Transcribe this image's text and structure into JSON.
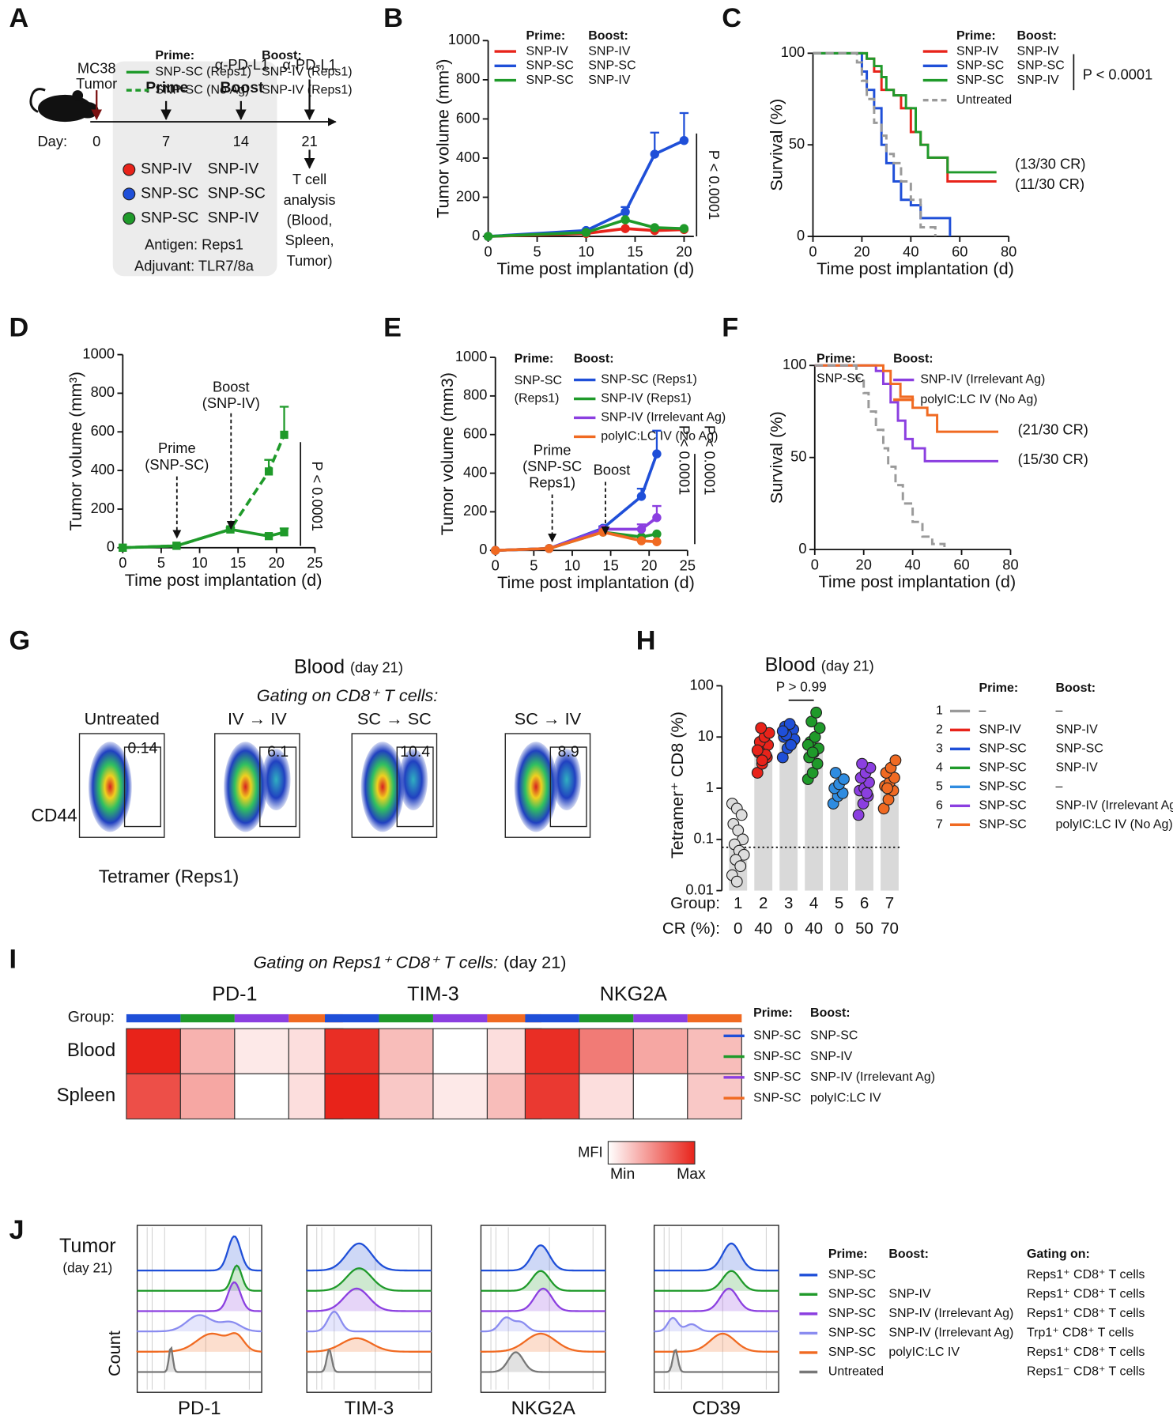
{
  "panel_labels": [
    "A",
    "B",
    "C",
    "D",
    "E",
    "F",
    "G",
    "H",
    "I",
    "J"
  ],
  "panel_a": {
    "mouse_label": [
      "MC38",
      "Tumor"
    ],
    "steps": [
      "Prime",
      "Boost"
    ],
    "treatments": [
      "α-PD-L1",
      "α-PD-L1"
    ],
    "day_label": "Day:",
    "days": [
      0,
      7,
      14,
      21
    ],
    "analysis": [
      "T cell",
      "analysis",
      "(Blood,",
      "Spleen,",
      "Tumor)"
    ],
    "groups": [
      {
        "color": "#e8231a",
        "prime": "SNP-IV",
        "boost": "SNP-IV"
      },
      {
        "color": "#1f4fd8",
        "prime": "SNP-SC",
        "boost": "SNP-SC"
      },
      {
        "color": "#1f9a2a",
        "prime": "SNP-SC",
        "boost": "SNP-IV"
      }
    ],
    "antigen": "Antigen: Reps1",
    "adjuvant": "Adjuvant: TLR7/8a"
  },
  "panel_g": {
    "title": "Blood",
    "title_note": "(day 21)",
    "subtitle": "Gating on CD8⁺ T cells:",
    "ylabel": "CD44",
    "xlabel": "Tetramer (Reps1)",
    "plots": [
      {
        "label": "Untreated",
        "color": "#8a8a8a",
        "gate": 0.14
      },
      {
        "label": "IV → IV",
        "color": "#e8231a",
        "gate": 6.1
      },
      {
        "label": "SC → SC",
        "color": "#1f4fd8",
        "gate": 10.4
      },
      {
        "label": "SC → IV",
        "color": "#1f9a2a",
        "gate": 8.9
      }
    ]
  },
  "panel_j": {
    "row_label": [
      "Tumor",
      "(day 21)"
    ],
    "ylabel": "Count",
    "markers": [
      "PD-1",
      "TIM-3",
      "NKG2A",
      "CD39"
    ],
    "headers": [
      "Prime:",
      "Boost:",
      "Gating on:"
    ],
    "rows": [
      {
        "color": "#1f4fd8",
        "prime": "SNP-SC",
        "boost": null,
        "gating": "Reps1⁺ CD8⁺ T cells"
      },
      {
        "color": "#1f9a2a",
        "prime": "SNP-SC",
        "boost": "SNP-IV",
        "gating": "Reps1⁺ CD8⁺ T cells"
      },
      {
        "color": "#8b3fe0",
        "prime": "SNP-SC",
        "boost": "SNP-IV (Irrelevant Ag)",
        "gating": "Reps1⁺ CD8⁺ T cells"
      },
      {
        "color": "#8a8cf0",
        "prime": "SNP-SC",
        "boost": "SNP-IV (Irrelevant Ag)",
        "gating": "Trp1⁺ CD8⁺ T cells"
      },
      {
        "color": "#f06a22",
        "prime": "SNP-SC",
        "boost": "polyIC:LC IV",
        "gating": "Reps1⁺ CD8⁺ T cells"
      },
      {
        "color": "#777777",
        "prime": "Untreated",
        "boost": null,
        "gating": "Reps1⁻ CD8⁺ T cells"
      }
    ]
  },
  "chart_data": [
    {
      "type": "line",
      "marker": "circle",
      "x": [
        0,
        10,
        14,
        17,
        20
      ],
      "xlim": [
        0,
        21
      ],
      "xticks": [
        0,
        5,
        10,
        15,
        20
      ],
      "ylim": [
        0,
        1000
      ],
      "yticks": [
        0,
        200,
        400,
        600,
        800,
        1000
      ],
      "xlabel": "Time post implantation (d)",
      "ylabel": "Tumor volume (mm³)",
      "legend_headers": [
        "Prime:",
        "Boost:"
      ],
      "series": [
        {
          "name": "SNP-IV",
          "boost": "SNP-IV",
          "color": "#e8231a",
          "values": [
            0,
            15,
            40,
            30,
            35
          ]
        },
        {
          "name": "SNP-SC",
          "boost": "SNP-SC",
          "color": "#1f4fd8",
          "values": [
            0,
            30,
            125,
            420,
            490
          ],
          "errors": [
            0,
            5,
            25,
            110,
            140
          ]
        },
        {
          "name": "SNP-SC",
          "boost": "SNP-IV",
          "color": "#1f9a2a",
          "values": [
            0,
            20,
            85,
            45,
            40
          ]
        }
      ],
      "annotations": [
        {
          "text": "P < 0.0001",
          "color": "#111111"
        }
      ]
    },
    {
      "type": "line",
      "step": true,
      "xlim": [
        0,
        80
      ],
      "xticks": [
        0,
        20,
        40,
        60,
        80
      ],
      "ylim": [
        0,
        100
      ],
      "yticks": [
        0,
        50,
        100
      ],
      "xlabel": "Time post implantation (d)",
      "ylabel": "Survival (%)",
      "legend_headers": [
        "Prime:",
        "Boost:"
      ],
      "series": [
        {
          "name": "SNP-IV",
          "boost": "SNP-IV",
          "color": "#e8231a",
          "x": [
            0,
            22,
            25,
            28,
            33,
            36,
            40,
            44,
            47,
            55,
            75
          ],
          "values": [
            100,
            97,
            90,
            80,
            77,
            70,
            57,
            50,
            43,
            30,
            30
          ]
        },
        {
          "name": "SNP-SC",
          "boost": "SNP-SC",
          "color": "#1f4fd8",
          "x": [
            0,
            20,
            22,
            25,
            28,
            30,
            33,
            36,
            40,
            44,
            50,
            56
          ],
          "values": [
            100,
            90,
            80,
            70,
            50,
            40,
            30,
            20,
            17,
            10,
            10,
            0
          ]
        },
        {
          "name": "SNP-SC",
          "boost": "SNP-IV",
          "color": "#1f9a2a",
          "x": [
            0,
            22,
            25,
            28,
            30,
            33,
            38,
            42,
            44,
            47,
            55,
            75
          ],
          "values": [
            100,
            97,
            93,
            87,
            80,
            77,
            70,
            57,
            50,
            43,
            35,
            35
          ]
        },
        {
          "name": "Untreated",
          "color": "#9a9a9a",
          "dash": true,
          "x": [
            0,
            18,
            20,
            22,
            25,
            28,
            30,
            33,
            36,
            40,
            44,
            50
          ],
          "values": [
            100,
            95,
            85,
            75,
            62,
            55,
            45,
            40,
            30,
            20,
            5,
            0
          ]
        }
      ],
      "annotations": [
        {
          "text": "(13/30 CR)",
          "color": "#1f9a2a"
        },
        {
          "text": "(11/30 CR)",
          "color": "#e8231a"
        },
        {
          "text": "P < 0.0001",
          "color": "#111111"
        }
      ]
    },
    {
      "type": "line",
      "marker": "square",
      "x": [
        0,
        7,
        14,
        19,
        21
      ],
      "xlim": [
        0,
        25
      ],
      "xticks": [
        0,
        5,
        10,
        15,
        20,
        25
      ],
      "ylim": [
        0,
        1000
      ],
      "yticks": [
        0,
        200,
        400,
        600,
        800,
        1000
      ],
      "xlabel": "Time post implantation (d)",
      "ylabel": "Tumor volume (mm³)",
      "legend_headers": [
        "Prime:",
        "Boost:"
      ],
      "series": [
        {
          "name": "SNP-SC (Reps1)",
          "boost": "SNP-IV (Reps1)",
          "color": "#1f9a2a",
          "values": [
            0,
            10,
            95,
            60,
            80
          ],
          "errors": [
            0,
            0,
            5,
            10,
            20
          ]
        },
        {
          "name": "SNP-SC (No Ag)",
          "boost": "SNP-IV (Reps1)",
          "color": "#1f9a2a",
          "dash": true,
          "values": [
            0,
            10,
            95,
            395,
            585
          ],
          "errors": [
            0,
            0,
            10,
            60,
            145
          ]
        }
      ],
      "annotations": [
        {
          "text": "Prime",
          "color": "#111111"
        },
        {
          "text": "(SNP-SC)",
          "color": "#111111"
        },
        {
          "text": "Boost",
          "color": "#111111"
        },
        {
          "text": "(SNP-IV)",
          "color": "#111111"
        },
        {
          "text": "P < 0.0001",
          "color": "#111111"
        }
      ]
    },
    {
      "type": "line",
      "marker": "circle",
      "x": [
        0,
        7,
        14,
        19,
        21
      ],
      "xlim": [
        0,
        25
      ],
      "xticks": [
        0,
        5,
        10,
        15,
        20,
        25
      ],
      "ylim": [
        0,
        1000
      ],
      "yticks": [
        0,
        200,
        400,
        600,
        800,
        1000
      ],
      "xlabel": "Time post implantation (d)",
      "ylabel": "Tumor volume (mm3)",
      "legend_headers": [
        "Prime:",
        "Boost:"
      ],
      "prime": [
        "SNP-SC",
        "(Reps1)"
      ],
      "series": [
        {
          "name": "SNP-SC (Reps1)",
          "color": "#1f4fd8",
          "values": [
            0,
            10,
            115,
            280,
            500
          ],
          "errors": [
            0,
            0,
            10,
            40,
            120
          ]
        },
        {
          "name": "SNP-IV (Reps1)",
          "color": "#1f9a2a",
          "values": [
            0,
            10,
            95,
            70,
            85
          ]
        },
        {
          "name": "SNP-IV (Irrelevant Ag)",
          "color": "#8b3fe0",
          "values": [
            0,
            10,
            110,
            110,
            170
          ],
          "errors": [
            0,
            0,
            10,
            25,
            60
          ]
        },
        {
          "name": "polyIC:LC IV (No Ag)",
          "color": "#f06a22",
          "values": [
            0,
            10,
            95,
            50,
            45
          ]
        }
      ],
      "annotations": [
        {
          "text": "Prime",
          "color": "#111111"
        },
        {
          "text": "(SNP-SC",
          "color": "#111111"
        },
        {
          "text": "Reps1)",
          "color": "#111111"
        },
        {
          "text": "Boost",
          "color": "#111111"
        },
        {
          "text": "P < 0.0001",
          "color": "#8b3fe0"
        },
        {
          "text": "P < 0.0001",
          "color": "#f06a22"
        }
      ]
    },
    {
      "type": "line",
      "step": true,
      "xlim": [
        0,
        80
      ],
      "xticks": [
        0,
        20,
        40,
        60,
        80
      ],
      "ylim": [
        0,
        100
      ],
      "yticks": [
        0,
        50,
        100
      ],
      "xlabel": "Time post implantation (d)",
      "ylabel": "Survival (%)",
      "legend_headers": [
        "Prime:",
        "Boost:"
      ],
      "prime": [
        "SNP-SC"
      ],
      "series": [
        {
          "name": "SNP-IV (Irrelevant Ag)",
          "color": "#8b3fe0",
          "x": [
            0,
            25,
            28,
            31,
            34,
            37,
            40,
            45,
            75
          ],
          "values": [
            100,
            97,
            90,
            80,
            70,
            60,
            55,
            48,
            48
          ]
        },
        {
          "name": "polyIC:LC IV (No Ag)",
          "color": "#f06a22",
          "x": [
            0,
            28,
            31,
            35,
            40,
            46,
            50,
            75
          ],
          "values": [
            100,
            97,
            90,
            83,
            77,
            73,
            64,
            64
          ]
        },
        {
          "color": "#9a9a9a",
          "dash": true,
          "x": [
            0,
            17,
            20,
            22,
            25,
            28,
            30,
            33,
            36,
            40,
            44,
            48,
            53
          ],
          "values": [
            100,
            93,
            85,
            75,
            65,
            55,
            45,
            35,
            25,
            15,
            7,
            3,
            0
          ]
        }
      ],
      "annotations": [
        {
          "text": "(21/30 CR)",
          "color": "#f06a22"
        },
        {
          "text": "(15/30 CR)",
          "color": "#8b3fe0"
        }
      ]
    },
    {
      "type": "bar",
      "log": true,
      "title": "Blood",
      "subtitle": "(day 21)",
      "ylabel": "Tetramer⁺ CD8 (%)",
      "ylim": [
        0.01,
        100
      ],
      "yticks": [
        0.01,
        0.1,
        1,
        10,
        100
      ],
      "categories": [
        "1",
        "2",
        "3",
        "4",
        "5",
        "6",
        "7"
      ],
      "values": [
        0.07,
        5,
        10,
        6,
        1,
        1.1,
        1.2
      ],
      "bar_color": "#d9d9d9",
      "threshold": 0.07,
      "colors": [
        "#dddddd",
        "#e8231a",
        "#1f4fd8",
        "#1f9a2a",
        "#2f8ce0",
        "#8b3fe0",
        "#f06a22"
      ],
      "points": [
        [
          0.5,
          0.4,
          0.3,
          0.2,
          0.15,
          0.1,
          0.08,
          0.06,
          0.05,
          0.04,
          0.03,
          0.02,
          0.015
        ],
        [
          2,
          3,
          4,
          5,
          6,
          7,
          8,
          10,
          12,
          15,
          4.5,
          5.5,
          3.5
        ],
        [
          4,
          6,
          8,
          10,
          12,
          14,
          16,
          18,
          9,
          11,
          7,
          13
        ],
        [
          1.5,
          2,
          3,
          4,
          5,
          6,
          8,
          10,
          15,
          20,
          30,
          7,
          5
        ],
        [
          0.5,
          0.7,
          0.8,
          1,
          1.2,
          1.5,
          2
        ],
        [
          0.3,
          0.5,
          0.7,
          0.9,
          1,
          1.3,
          1.6,
          2,
          2.5,
          3,
          0.8
        ],
        [
          0.4,
          0.6,
          0.9,
          1.1,
          1.3,
          1.6,
          2,
          2.5,
          3.5,
          1
        ]
      ],
      "annotations": [
        {
          "text": "P > 0.99",
          "color": "#1f9a2a"
        }
      ],
      "group_label": "Group:",
      "cr_label": "CR (%):",
      "cr": [
        0,
        40,
        0,
        40,
        0,
        50,
        70
      ],
      "cr_colors": [
        "#e8231a",
        "#1f9a2a",
        "#e8231a",
        "#1f9a2a",
        "#e8231a",
        "#1f9a2a",
        "#1f9a2a"
      ],
      "legend_headers": [
        "Prime:",
        "Boost:"
      ],
      "legend": [
        {
          "prime": "–",
          "boost": "–"
        },
        {
          "prime": "SNP-IV",
          "boost": "SNP-IV"
        },
        {
          "prime": "SNP-SC",
          "boost": "SNP-SC"
        },
        {
          "prime": "SNP-SC",
          "boost": "SNP-IV"
        },
        {
          "prime": "SNP-SC",
          "boost": "–"
        },
        {
          "prime": "SNP-SC",
          "boost": "SNP-IV (Irrelevant Ag)"
        },
        {
          "prime": "SNP-SC",
          "boost": "polyIC:LC IV (No Ag)"
        }
      ]
    },
    {
      "type": "heatmap",
      "title": "Gating on Reps1⁺ CD8⁺ T cells:",
      "subtitle": "(day 21)",
      "group_label": "Group:",
      "rows": [
        "Blood",
        "Spleen"
      ],
      "group_colors": [
        "#1f4fd8",
        "#1f9a2a",
        "#8b3fe0",
        "#f06a22"
      ],
      "vlim": [
        0,
        1
      ],
      "colormap": [
        "#ffffff",
        "#e8231a"
      ],
      "panels": [
        {
          "title": "PD-1",
          "values": [
            [
              1,
              0.35,
              0.1,
              0.15
            ],
            [
              0.8,
              0.4,
              0,
              0.15
            ]
          ]
        },
        {
          "title": "TIM-3",
          "values": [
            [
              0.95,
              0.3,
              0,
              0.15
            ],
            [
              1,
              0.25,
              0.1,
              0.3
            ]
          ]
        },
        {
          "title": "NKG2A",
          "values": [
            [
              0.95,
              0.6,
              0.4,
              0.3
            ],
            [
              0.9,
              0.15,
              0,
              0.25
            ]
          ]
        }
      ],
      "legend_headers": [
        "Prime:",
        "Boost:"
      ],
      "legend": [
        {
          "prime": "SNP-SC",
          "boost": "SNP-SC"
        },
        {
          "prime": "SNP-SC",
          "boost": "SNP-IV"
        },
        {
          "prime": "SNP-SC",
          "boost": "SNP-IV (Irrelevant Ag)"
        },
        {
          "prime": "SNP-SC",
          "boost": "polyIC:LC IV"
        }
      ],
      "colorbar_label": "MFI",
      "colorbar_ends": [
        "Min",
        "Max"
      ]
    }
  ]
}
